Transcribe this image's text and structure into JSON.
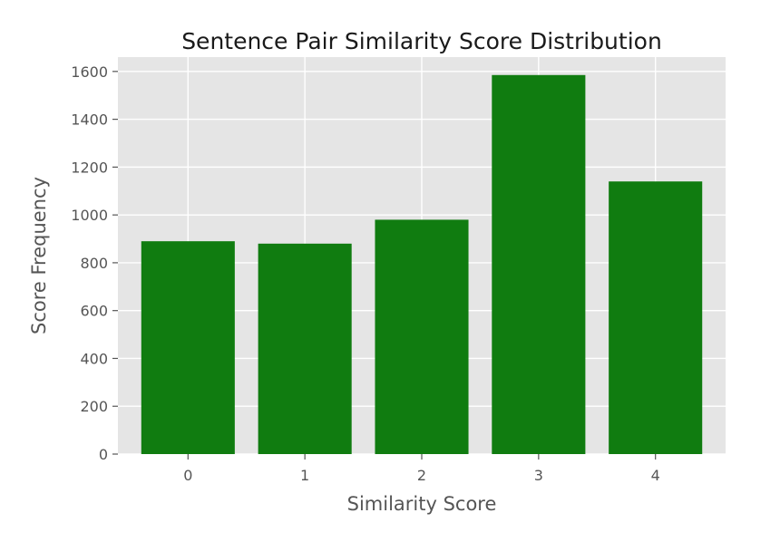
{
  "chart_data": {
    "type": "bar",
    "title": "Sentence Pair Similarity Score Distribution",
    "xlabel": "Similarity Score",
    "ylabel": "Score Frequency",
    "categories": [
      "0",
      "1",
      "2",
      "3",
      "4"
    ],
    "values": [
      890,
      880,
      980,
      1585,
      1140
    ],
    "ylim": [
      0,
      1660
    ],
    "yticks": [
      "0",
      "200",
      "400",
      "600",
      "800",
      "1000",
      "1200",
      "1400",
      "1600"
    ],
    "grid": true,
    "bar_color": "#107c10",
    "background_color": "#e5e5e5"
  }
}
